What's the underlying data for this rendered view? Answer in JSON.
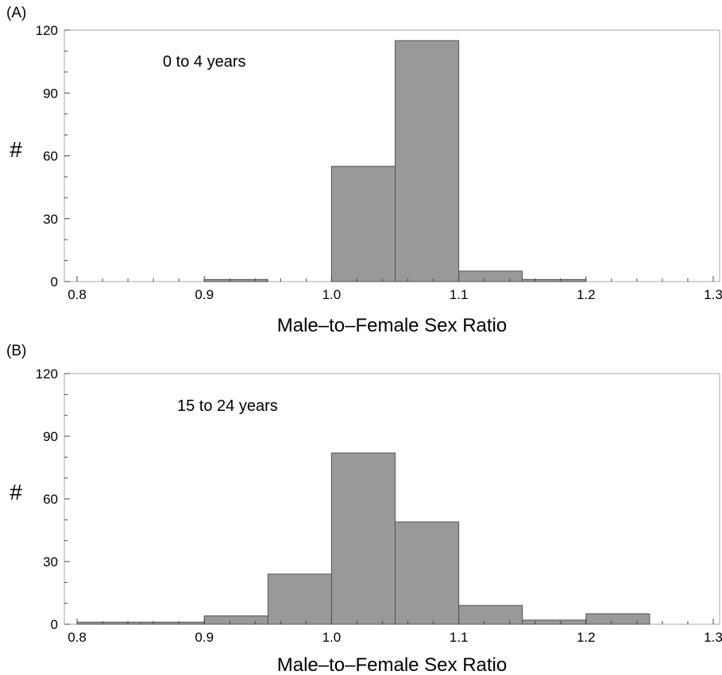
{
  "colors": {
    "bar_fill": "#999999",
    "bar_stroke": "#555555",
    "frame": "#aaaaaa",
    "text": "#000000"
  },
  "chart_data": [
    {
      "type": "bar",
      "panel": "(A)",
      "annotation": "0 to 4 years",
      "xlabel": "Male–to–Female Sex Ratio",
      "ylabel": "#",
      "xlim": [
        0.79,
        1.305
      ],
      "ylim": [
        0,
        120
      ],
      "xticks": [
        "0.8",
        "0.9",
        "1.0",
        "1.1",
        "1.2",
        "1.3"
      ],
      "yticks": [
        "0",
        "30",
        "60",
        "90",
        "120"
      ],
      "bin_width": 0.05,
      "bins": [
        0.8,
        0.85,
        0.9,
        0.95,
        1.0,
        1.05,
        1.1,
        1.15,
        1.2,
        1.25
      ],
      "values": [
        0,
        0,
        1,
        0,
        55,
        115,
        5,
        1,
        0,
        0
      ],
      "grid": false
    },
    {
      "type": "bar",
      "panel": "(B)",
      "annotation": "15 to 24 years",
      "xlabel": "Male–to–Female Sex Ratio",
      "ylabel": "#",
      "xlim": [
        0.79,
        1.305
      ],
      "ylim": [
        0,
        120
      ],
      "xticks": [
        "0.8",
        "0.9",
        "1.0",
        "1.1",
        "1.2",
        "1.3"
      ],
      "yticks": [
        "0",
        "30",
        "60",
        "90",
        "120"
      ],
      "bin_width": 0.05,
      "bins": [
        0.8,
        0.85,
        0.9,
        0.95,
        1.0,
        1.05,
        1.1,
        1.15,
        1.2,
        1.25
      ],
      "values": [
        1,
        1,
        4,
        24,
        82,
        49,
        9,
        2,
        5,
        0
      ],
      "grid": false
    }
  ]
}
